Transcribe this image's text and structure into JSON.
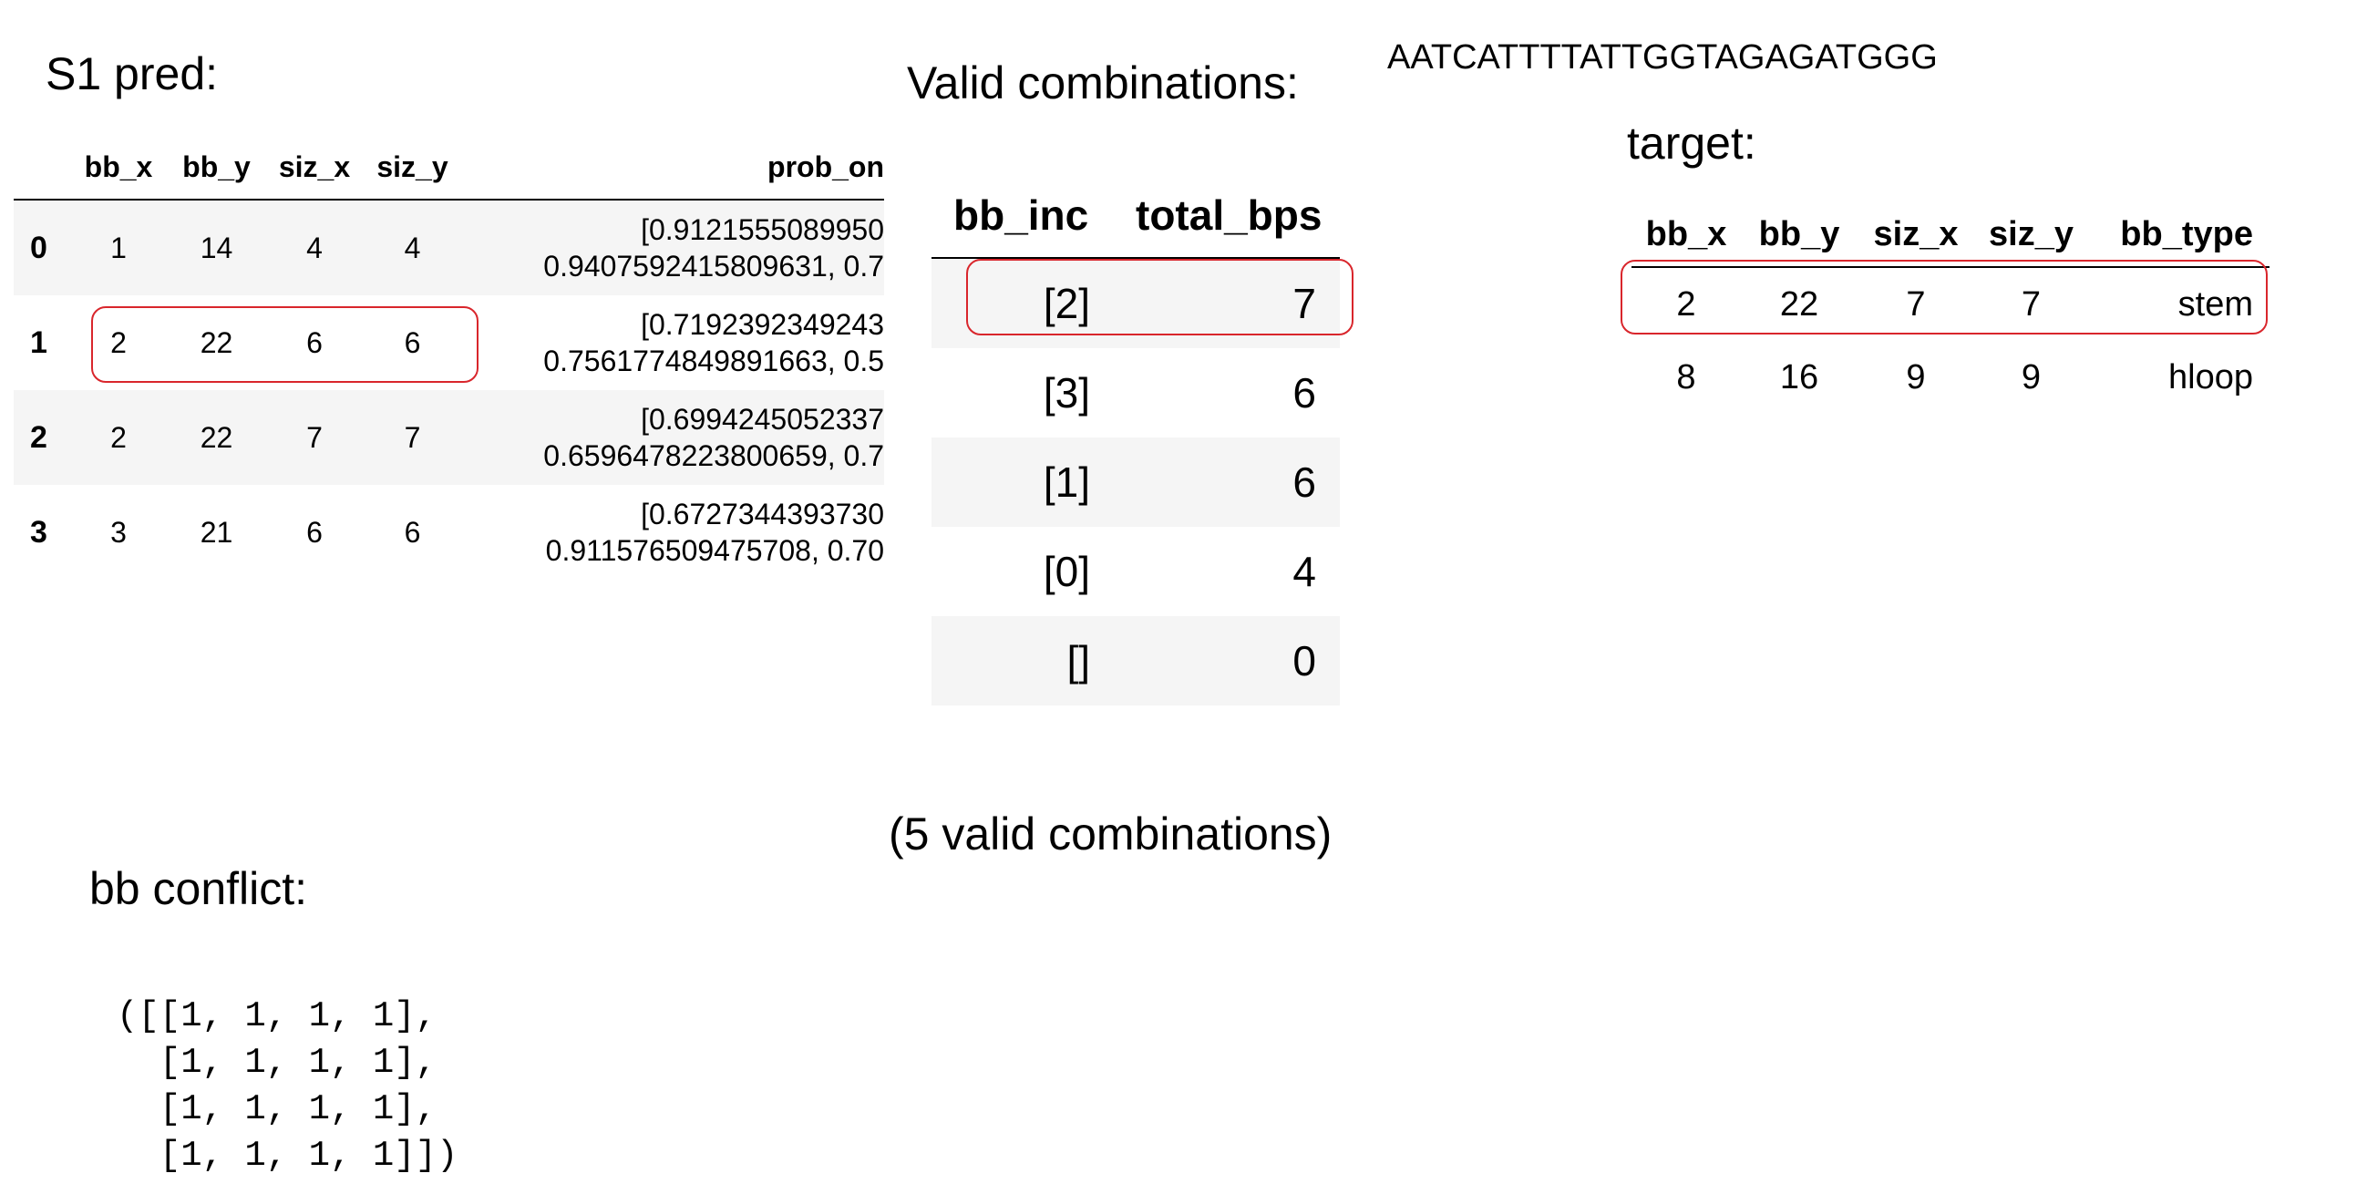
{
  "s1_pred": {
    "heading": "S1 pred:",
    "columns": [
      "",
      "bb_x",
      "bb_y",
      "siz_x",
      "siz_y",
      "prob_on"
    ],
    "rows": [
      {
        "idx": "0",
        "bb_x": "1",
        "bb_y": "14",
        "siz_x": "4",
        "siz_y": "4",
        "prob_line1": "[0.9121555089950",
        "prob_line2": "0.9407592415809631, 0.7"
      },
      {
        "idx": "1",
        "bb_x": "2",
        "bb_y": "22",
        "siz_x": "6",
        "siz_y": "6",
        "prob_line1": "[0.7192392349243",
        "prob_line2": "0.7561774849891663, 0.5"
      },
      {
        "idx": "2",
        "bb_x": "2",
        "bb_y": "22",
        "siz_x": "7",
        "siz_y": "7",
        "prob_line1": "[0.6994245052337",
        "prob_line2": "0.6596478223800659, 0.7"
      },
      {
        "idx": "3",
        "bb_x": "3",
        "bb_y": "21",
        "siz_x": "6",
        "siz_y": "6",
        "prob_line1": "[0.6727344393730",
        "prob_line2": "0.911576509475708, 0.70"
      }
    ]
  },
  "valid_combinations": {
    "heading": "Valid combinations:",
    "columns": [
      "bb_inc",
      "total_bps"
    ],
    "rows": [
      {
        "bb_inc": "[2]",
        "total_bps": "7"
      },
      {
        "bb_inc": "[3]",
        "total_bps": "6"
      },
      {
        "bb_inc": "[1]",
        "total_bps": "6"
      },
      {
        "bb_inc": "[0]",
        "total_bps": "4"
      },
      {
        "bb_inc": "[]",
        "total_bps": "0"
      }
    ],
    "count_note": "(5 valid combinations)"
  },
  "sequence": "AATCATTTTATTGGTAGAGATGGG",
  "target": {
    "heading": "target:",
    "columns": [
      "bb_x",
      "bb_y",
      "siz_x",
      "siz_y",
      "bb_type"
    ],
    "rows": [
      {
        "bb_x": "2",
        "bb_y": "22",
        "siz_x": "7",
        "siz_y": "7",
        "bb_type": "stem"
      },
      {
        "bb_x": "8",
        "bb_y": "16",
        "siz_x": "9",
        "siz_y": "9",
        "bb_type": "hloop"
      }
    ]
  },
  "bb_conflict": {
    "heading": "bb conflict:",
    "code_lines": [
      "([[1, 1, 1, 1],",
      "  [1, 1, 1, 1],",
      "  [1, 1, 1, 1],",
      "  [1, 1, 1, 1]])"
    ]
  },
  "colors": {
    "highlight": "#d9262c",
    "row_stripe": "#f5f5f5"
  }
}
